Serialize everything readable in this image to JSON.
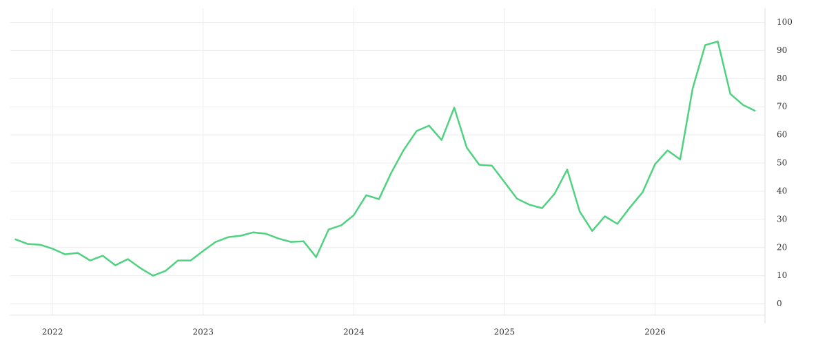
{
  "chart_data": {
    "type": "line",
    "x": [
      2021.75,
      2021.833,
      2021.917,
      2022,
      2022.083,
      2022.167,
      2022.25,
      2022.333,
      2022.417,
      2022.5,
      2022.583,
      2022.667,
      2022.75,
      2022.833,
      2022.917,
      2023,
      2023.083,
      2023.167,
      2023.25,
      2023.333,
      2023.417,
      2023.5,
      2023.583,
      2023.667,
      2023.75,
      2023.833,
      2023.917,
      2024,
      2024.083,
      2024.167,
      2024.25,
      2024.333,
      2024.417,
      2024.5,
      2024.583,
      2024.667,
      2024.75,
      2024.833,
      2024.917,
      2025,
      2025.083,
      2025.167,
      2025.25,
      2025.333,
      2025.417,
      2025.5,
      2025.583,
      2025.667,
      2025.75,
      2025.833,
      2025.917,
      2026,
      2026.083,
      2026.167,
      2026.25,
      2026.333,
      2026.417,
      2026.5,
      2026.583,
      2026.667
    ],
    "series": [
      {
        "color": "#4fd27f",
        "values": [
          23,
          21.3,
          21,
          19.6,
          17.6,
          18.1,
          15.4,
          17.1,
          13.7,
          15.9,
          12.7,
          10,
          11.7,
          15.4,
          15.4,
          18.8,
          22,
          23.7,
          24.2,
          25.4,
          24.9,
          23.2,
          22,
          22.2,
          16.6,
          26.4,
          27.9,
          31.5,
          38.6,
          37.2,
          46.7,
          54.8,
          61.4,
          63.3,
          58.2,
          69.7,
          55.5,
          49.4,
          49.1,
          43.3,
          37.4,
          35.2,
          34,
          39.1,
          47.7,
          32.8,
          25.9,
          31.1,
          28.4,
          34.2,
          39.6,
          49.6,
          54.5,
          51.3,
          76.5,
          91.9,
          93.2,
          74.6,
          70.7,
          68.5
        ]
      }
    ],
    "xlim": [
      2021.72,
      2026.73
    ],
    "xticks": [
      2022,
      2023,
      2024,
      2025,
      2026
    ],
    "ylim": [
      -4,
      105
    ],
    "yticks": [
      0,
      10,
      20,
      30,
      40,
      50,
      60,
      70,
      80,
      90,
      100
    ],
    "grid": true
  }
}
